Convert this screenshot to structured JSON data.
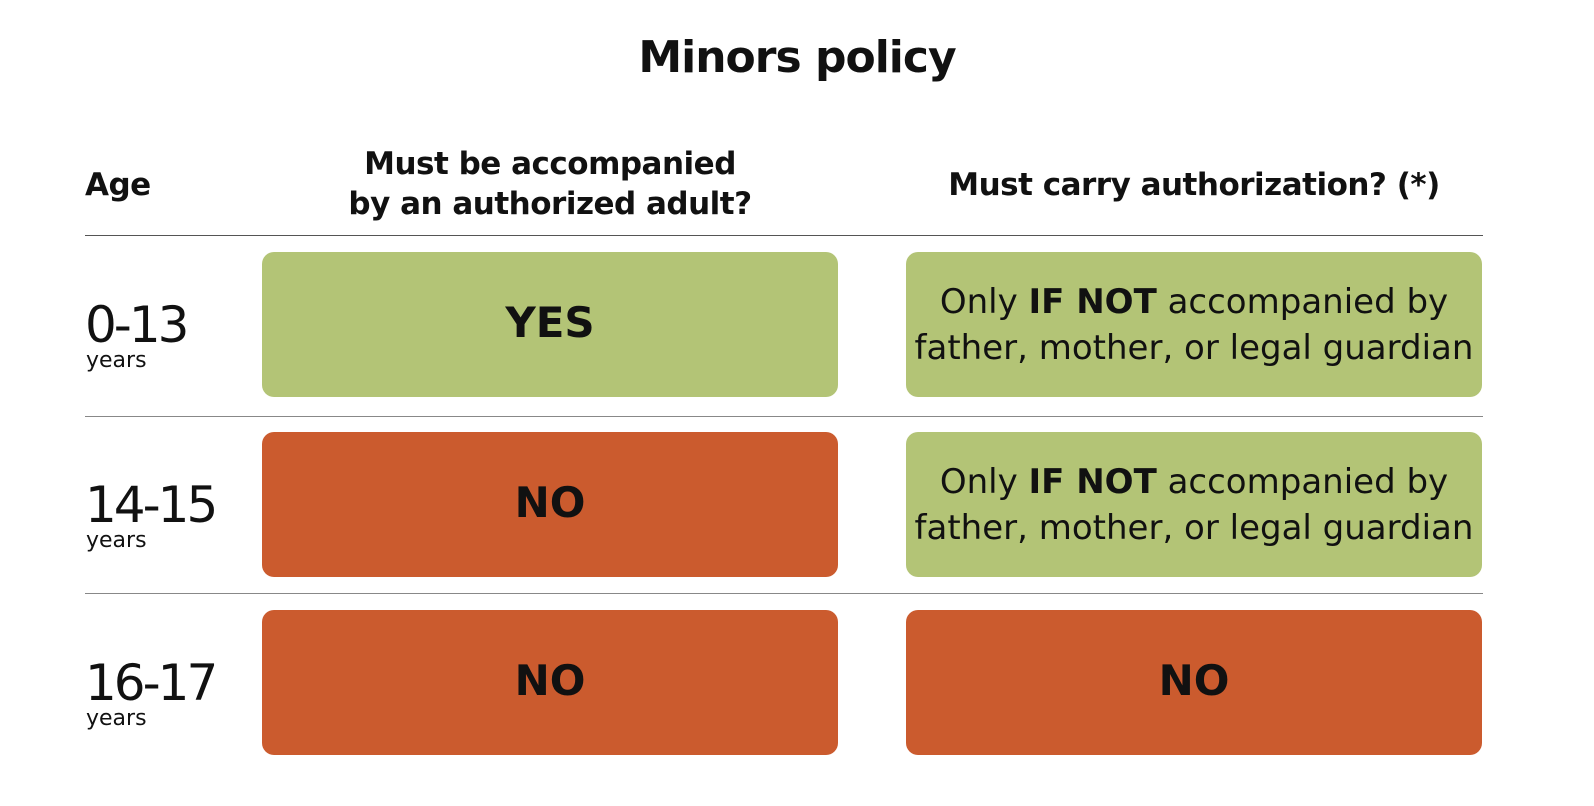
{
  "title": "Minors policy",
  "header": {
    "age": "Age",
    "accompanied": [
      "Must be accompanied",
      "by an authorized adult?"
    ],
    "authorization": "Must carry authorization? (*)"
  },
  "rows": [
    {
      "age": "0-13",
      "unit": "years",
      "accompanied": {
        "color": "#b3c476",
        "lines": [
          [
            {
              "text": "YES",
              "bold": true
            }
          ]
        ]
      },
      "authorization": {
        "color": "#b3c476",
        "lines": [
          [
            {
              "text": "Only ",
              "bold": false
            },
            {
              "text": "IF NOT",
              "bold": true
            },
            {
              "text": " accompanied by",
              "bold": false
            }
          ],
          [
            {
              "text": "father, mother, or legal guardian",
              "bold": false
            }
          ]
        ]
      }
    },
    {
      "age": "14-15",
      "unit": "years",
      "accompanied": {
        "color": "#cb5b2e",
        "lines": [
          [
            {
              "text": "NO",
              "bold": true
            }
          ]
        ]
      },
      "authorization": {
        "color": "#b3c476",
        "lines": [
          [
            {
              "text": "Only ",
              "bold": false
            },
            {
              "text": "IF NOT",
              "bold": true
            },
            {
              "text": " accompanied by",
              "bold": false
            }
          ],
          [
            {
              "text": "father, mother, or legal guardian",
              "bold": false
            }
          ]
        ]
      }
    },
    {
      "age": "16-17",
      "unit": "years",
      "accompanied": {
        "color": "#cb5b2e",
        "lines": [
          [
            {
              "text": "NO",
              "bold": true
            }
          ]
        ]
      },
      "authorization": {
        "color": "#cb5b2e",
        "lines": [
          [
            {
              "text": "NO",
              "bold": true
            }
          ]
        ]
      }
    }
  ]
}
